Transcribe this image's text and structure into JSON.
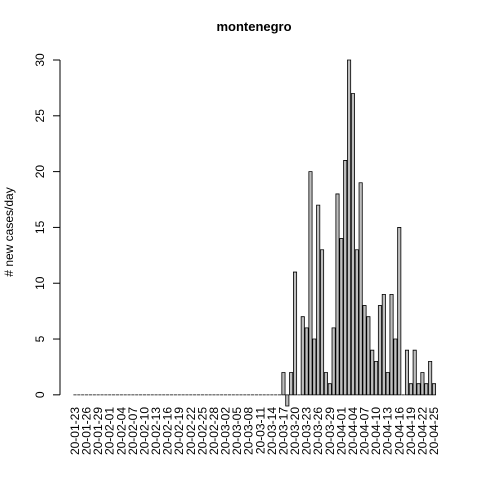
{
  "chart_data": {
    "type": "bar",
    "title": "montenegro",
    "y_label": "# new cases/day",
    "categories": [
      "20-01-23",
      null,
      null,
      "20-01-26",
      null,
      null,
      "20-01-29",
      null,
      null,
      "20-02-01",
      null,
      null,
      "20-02-04",
      null,
      null,
      "20-02-07",
      null,
      null,
      "20-02-10",
      null,
      null,
      "20-02-13",
      null,
      null,
      "20-02-16",
      null,
      null,
      "20-02-19",
      null,
      null,
      "20-02-22",
      null,
      null,
      "20-02-25",
      null,
      null,
      "20-02-28",
      null,
      null,
      "20-03-02",
      null,
      null,
      "20-03-05",
      null,
      null,
      "20-03-08",
      null,
      null,
      "20-03-11",
      null,
      null,
      "20-03-14",
      null,
      null,
      "20-03-17",
      null,
      null,
      "20-03-20",
      null,
      null,
      "20-03-23",
      null,
      null,
      "20-03-26",
      null,
      null,
      "20-03-29",
      null,
      null,
      "20-04-01",
      null,
      null,
      "20-04-04",
      null,
      null,
      "20-04-07",
      null,
      null,
      "20-04-10",
      null,
      null,
      "20-04-13",
      null,
      null,
      "20-04-16",
      null,
      null,
      "20-04-19",
      null,
      null,
      "20-04-22",
      null,
      null,
      "20-04-25"
    ],
    "values": [
      0,
      0,
      0,
      0,
      0,
      0,
      0,
      0,
      0,
      0,
      0,
      0,
      0,
      0,
      0,
      0,
      0,
      0,
      0,
      0,
      0,
      0,
      0,
      0,
      0,
      0,
      0,
      0,
      0,
      0,
      0,
      0,
      0,
      0,
      0,
      0,
      0,
      0,
      0,
      0,
      0,
      0,
      0,
      0,
      0,
      0,
      0,
      0,
      0,
      0,
      0,
      0,
      0,
      0,
      2,
      -1,
      2,
      11,
      0,
      7,
      6,
      20,
      5,
      17,
      13,
      2,
      1,
      6,
      18,
      14,
      21,
      30,
      27,
      13,
      19,
      8,
      7,
      4,
      3,
      8,
      9,
      2,
      9,
      5,
      15,
      0,
      4,
      1,
      4,
      1,
      2,
      1,
      3,
      1
    ],
    "color": "#bebebe",
    "ylim": [
      -1,
      30
    ],
    "yticks": [
      0,
      5,
      10,
      15,
      20,
      25,
      30
    ]
  }
}
